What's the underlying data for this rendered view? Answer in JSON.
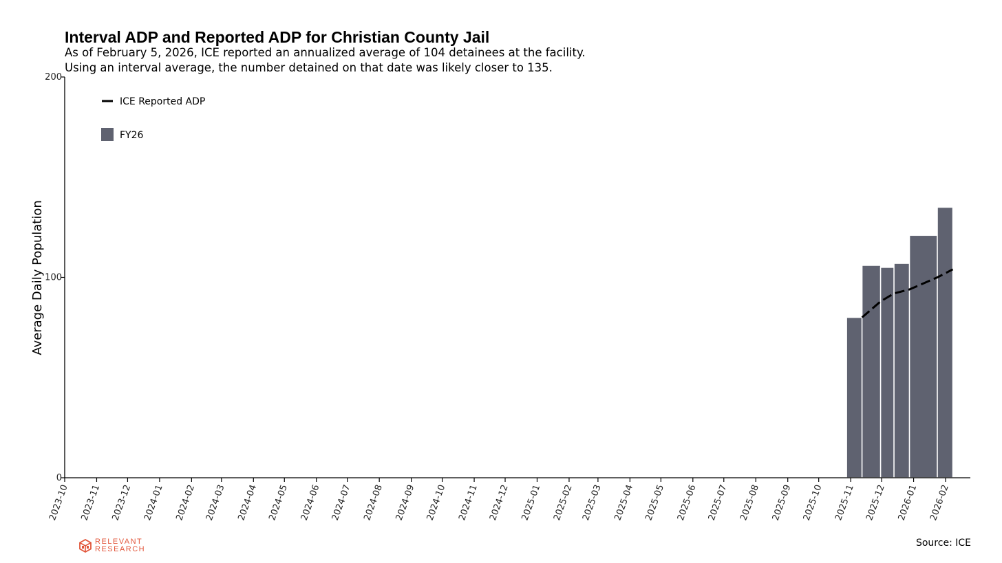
{
  "header": {
    "title": "Interval ADP and Reported ADP for Christian County Jail",
    "subtitle_line_1": "As of February 5, 2026, ICE reported an annualized average of 104 detainees at the facility.",
    "subtitle_line_2": "Using an interval average, the number detained on that date was likely closer to 135."
  },
  "chart_data": {
    "type": "bar",
    "title": "Interval ADP and Reported ADP for Christian County Jail",
    "ylabel": "Average Daily Population",
    "xlabel": "",
    "ylim": [
      0,
      200
    ],
    "yticks": [
      0,
      100,
      200
    ],
    "xlim": [
      "2023-10-01",
      "2026-02-25"
    ],
    "xticks": [
      "2023-10",
      "2023-11",
      "2023-12",
      "2024-01",
      "2024-02",
      "2024-03",
      "2024-04",
      "2024-05",
      "2024-06",
      "2024-07",
      "2024-08",
      "2024-09",
      "2024-10",
      "2024-11",
      "2024-12",
      "2025-01",
      "2025-02",
      "2025-03",
      "2025-04",
      "2025-05",
      "2025-06",
      "2025-07",
      "2025-08",
      "2025-09",
      "2025-10",
      "2025-11",
      "2025-12",
      "2026-01",
      "2026-02"
    ],
    "grid": false,
    "legend_position": "top-left",
    "series": [
      {
        "name": "FY26",
        "kind": "bar",
        "color": "#5f6270",
        "bars": [
          {
            "start": "2025-10-28",
            "end": "2025-11-12",
            "value": 80
          },
          {
            "start": "2025-11-12",
            "end": "2025-11-30",
            "value": 106
          },
          {
            "start": "2025-11-30",
            "end": "2025-12-13",
            "value": 105
          },
          {
            "start": "2025-12-13",
            "end": "2025-12-28",
            "value": 107
          },
          {
            "start": "2025-12-28",
            "end": "2026-01-24",
            "value": 121
          },
          {
            "start": "2026-01-24",
            "end": "2026-02-08",
            "value": 135
          }
        ]
      },
      {
        "name": "ICE Reported ADP",
        "kind": "line",
        "style": "dashed",
        "color": "#000000",
        "points": [
          {
            "x": "2025-11-12",
            "y": 80
          },
          {
            "x": "2025-11-30",
            "y": 88
          },
          {
            "x": "2025-12-13",
            "y": 92
          },
          {
            "x": "2025-12-28",
            "y": 94
          },
          {
            "x": "2026-01-24",
            "y": 100
          },
          {
            "x": "2026-02-08",
            "y": 104
          }
        ]
      }
    ]
  },
  "legend": {
    "line_label": "ICE Reported ADP",
    "bar_label": "FY26"
  },
  "footer": {
    "brand_line_1": "RELEVANT",
    "brand_line_2": "RESEARCH",
    "source": "Source: ICE"
  },
  "colors": {
    "bar": "#5f6270",
    "line": "#000000",
    "brand": "#e2553a"
  }
}
